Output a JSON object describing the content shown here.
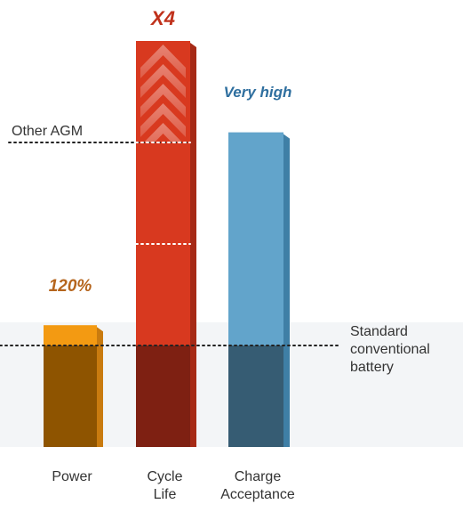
{
  "chart_data": {
    "type": "bar",
    "title": "",
    "xlabel": "",
    "ylabel": "",
    "categories": [
      "Power",
      "Cycle Life",
      "Charge Acceptance"
    ],
    "category_labels": [
      [
        "Power"
      ],
      [
        "Cycle",
        "Life"
      ],
      [
        "Charge",
        "Acceptance"
      ]
    ],
    "values": [
      1.2,
      4.0,
      3.1
    ],
    "value_labels": [
      "120%",
      "X4",
      "Very high"
    ],
    "reference_lines": [
      {
        "label": "Standard conventional battery",
        "label_lines": [
          "Standard",
          "conventional",
          "battery"
        ],
        "value": 1.0
      },
      {
        "label": "Other AGM",
        "label_lines": [
          "Other AGM"
        ],
        "value": 3.0
      }
    ],
    "inner_marker_value": 2.0,
    "ylim": [
      0,
      4.0
    ],
    "grid": false,
    "legend": "none",
    "colors": {
      "power_top": "#F39A12",
      "power_base": "#8E5400",
      "power_side": "#C97B0F",
      "power_label": "#B5651D",
      "cycle_top": "#D8391F",
      "cycle_base": "#7E2012",
      "cycle_side": "#A62A16",
      "cycle_label": "#C0311B",
      "charge_top": "#62A4CB",
      "charge_base": "#365C73",
      "charge_side": "#3F7FA6",
      "charge_label": "#2F6F9F",
      "band": "#F3F5F7",
      "text": "#333333",
      "dotted": "#222222"
    }
  }
}
